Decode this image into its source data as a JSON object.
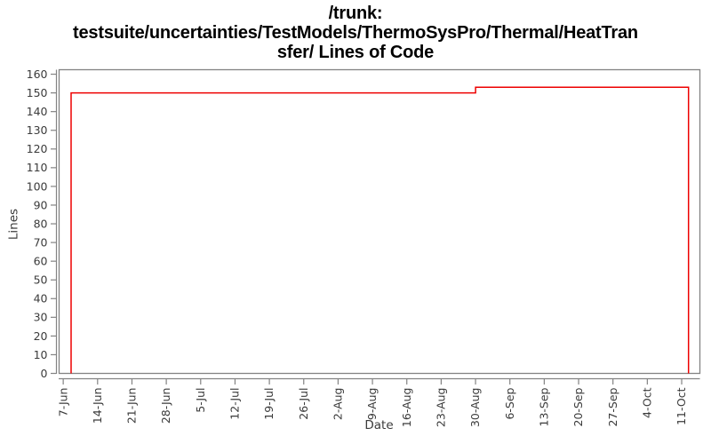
{
  "window": {
    "background": "#ffffff"
  },
  "title": {
    "line1": "/trunk:",
    "line2": "testsuite/uncertainties/TestModels/ThermoSysPro/Thermal/HeatTran",
    "line3": "sfer/ Lines of Code"
  },
  "chart_data": {
    "type": "line",
    "subtype": "step",
    "title": "/trunk: testsuite/uncertainties/TestModels/ThermoSysPro/Thermal/HeatTransfer/ Lines of Code",
    "xlabel": "Date",
    "ylabel": "Lines",
    "grid": false,
    "legend_position": "none",
    "x_tick_labels": [
      "7-Jun",
      "14-Jun",
      "21-Jun",
      "28-Jun",
      "5-Jul",
      "12-Jul",
      "19-Jul",
      "26-Jul",
      "2-Aug",
      "9-Aug",
      "16-Aug",
      "23-Aug",
      "30-Aug",
      "6-Sep",
      "13-Sep",
      "20-Sep",
      "27-Sep",
      "4-Oct",
      "11-Oct"
    ],
    "y_ticks": [
      0,
      10,
      20,
      30,
      40,
      50,
      60,
      70,
      80,
      90,
      100,
      110,
      120,
      130,
      140,
      150,
      160
    ],
    "ylim": [
      0,
      162.4
    ],
    "xlim_weeks": [
      -0.12,
      18.53
    ],
    "series": [
      {
        "name": "Lines of Code",
        "color": "#ee0000",
        "points": [
          {
            "x_weeks": 0.23,
            "date": "9-Jun",
            "value": 0
          },
          {
            "x_weeks": 0.23,
            "date": "9-Jun",
            "value": 150
          },
          {
            "x_weeks": 12.0,
            "date": "30-Aug",
            "value": 150
          },
          {
            "x_weeks": 12.0,
            "date": "30-Aug",
            "value": 153
          },
          {
            "x_weeks": 18.2,
            "date": "12-Oct",
            "value": 153
          },
          {
            "x_weeks": 18.2,
            "date": "12-Oct",
            "value": 0
          }
        ]
      }
    ],
    "colors": {
      "line": "#ee0000",
      "frame": "#838383",
      "tick_text": "#3b3b3b",
      "axis_label_text": "#3b3b3b",
      "title_text": "#000000"
    }
  }
}
